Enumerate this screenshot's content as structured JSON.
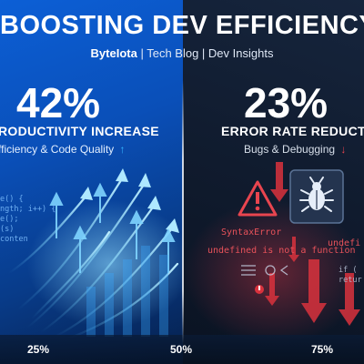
{
  "header": {
    "title": "BOOSTING DEV EFFICIENCY",
    "brand": "ByteIota",
    "tagline": "| Tech Blog | Dev Insights"
  },
  "left_metric": {
    "value": "42%",
    "label": "RODUCTIVITY INCREASE",
    "sub": "fficiency & Code Quality",
    "accent": "#35b6ff"
  },
  "right_metric": {
    "value": "23%",
    "label": "ERROR RATE REDUCT",
    "sub": "Bugs & Debugging",
    "accent": "#e8454f"
  },
  "code_left": {
    "line1": "e() {",
    "line2": "ngth; i++) {",
    "line3": "e();",
    "line4": "(s)",
    "line5": "conten"
  },
  "errors": {
    "syntax": "SyntaxError",
    "undefined_fn": "undefined is not a function",
    "undefined_right": "undefi",
    "code_right": "if (",
    "code_right2": "retur"
  },
  "axis": {
    "left": "25%",
    "center": "50%",
    "right": "75%"
  },
  "icons": [
    "arrow-up-icon",
    "arrow-down-icon",
    "warning-icon",
    "bug-icon",
    "settings-icon",
    "error-icon"
  ]
}
